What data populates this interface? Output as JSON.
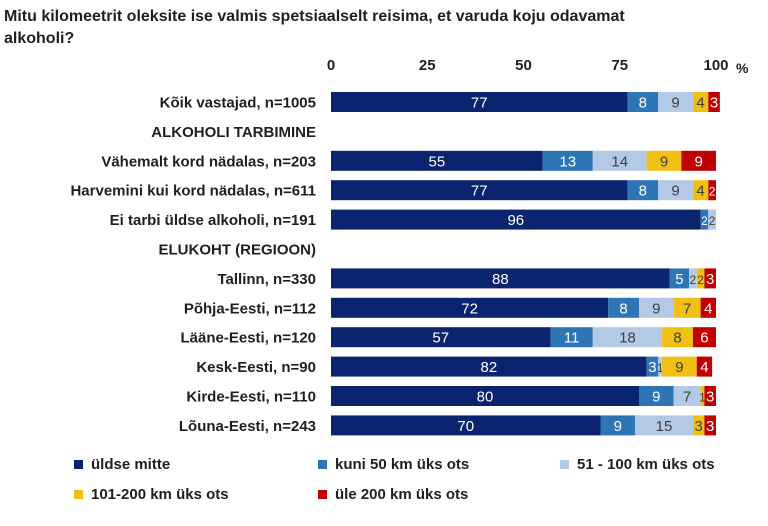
{
  "title": "Mitu kilomeetrit oleksite ise valmis spetsiaalselt reisima, et varuda koju odavamat alkoholi?",
  "chart_data": {
    "type": "bar",
    "orientation": "horizontal",
    "stacked": true,
    "title": "Mitu kilomeetrit oleksite ise valmis spetsiaalselt reisima, et varuda koju odavamat alkoholi?",
    "x_ticks": [
      "0",
      "25",
      "50",
      "75",
      "100"
    ],
    "x_unit": "%",
    "xlim": [
      0,
      100
    ],
    "grid": false,
    "legend_position": "bottom",
    "rows": [
      {
        "label": "Kõik vastajad, n=1005",
        "heading": false,
        "values": [
          77,
          8,
          9,
          4,
          3
        ],
        "labels": [
          "77",
          "8",
          "9",
          "4",
          "3"
        ]
      },
      {
        "label": "ALKOHOLI TARBIMINE",
        "heading": true
      },
      {
        "label": "Vähemalt kord nädalas, n=203",
        "heading": false,
        "values": [
          55,
          13,
          14,
          9,
          9
        ],
        "labels": [
          "55",
          "13",
          "14",
          "9",
          "9"
        ]
      },
      {
        "label": "Harvemini kui kord nädalas, n=611",
        "heading": false,
        "values": [
          77,
          8,
          9,
          4,
          2
        ],
        "labels": [
          "77",
          "8",
          "9",
          "4",
          "2"
        ]
      },
      {
        "label": "Ei tarbi üldse alkoholi, n=191",
        "heading": false,
        "values": [
          96,
          2,
          2,
          0,
          0
        ],
        "labels": [
          "96",
          "2",
          "2",
          "0",
          "0"
        ]
      },
      {
        "label": "ELUKOHT (REGIOON)",
        "heading": true
      },
      {
        "label": "Tallinn, n=330",
        "heading": false,
        "values": [
          88,
          5,
          2,
          2,
          3
        ],
        "labels": [
          "88",
          "5",
          "2",
          "2",
          "3"
        ]
      },
      {
        "label": "Põhja-Eesti, n=112",
        "heading": false,
        "values": [
          72,
          8,
          9,
          7,
          4
        ],
        "labels": [
          "72",
          "8",
          "9",
          "7",
          "4"
        ]
      },
      {
        "label": "Lääne-Eesti, n=120",
        "heading": false,
        "values": [
          57,
          11,
          18,
          8,
          6
        ],
        "labels": [
          "57",
          "11",
          "18",
          "8",
          "6"
        ]
      },
      {
        "label": "Kesk-Eesti, n=90",
        "heading": false,
        "values": [
          82,
          3,
          1,
          9,
          4
        ],
        "labels": [
          "82",
          "3",
          "1",
          "9",
          "4"
        ]
      },
      {
        "label": "Kirde-Eesti, n=110",
        "heading": false,
        "values": [
          80,
          9,
          7,
          1,
          3
        ],
        "labels": [
          "80",
          "9",
          "7",
          "1",
          "3"
        ]
      },
      {
        "label": "Lõuna-Eesti, n=243",
        "heading": false,
        "values": [
          70,
          9,
          15,
          3,
          3
        ],
        "labels": [
          "70",
          "9",
          "15",
          "3",
          "3"
        ]
      }
    ],
    "series": [
      {
        "name": "üldse mitte",
        "color": "#0b2470",
        "text_color": "#ffffff"
      },
      {
        "name": "kuni 50 km üks ots",
        "color": "#2e75b6",
        "text_color": "#ffffff"
      },
      {
        "name": "51 - 100 km üks ots",
        "color": "#b3c9e6",
        "text_color": "#404040"
      },
      {
        "name": "101-200 km üks ots",
        "color": "#f2bf14",
        "text_color": "#404040"
      },
      {
        "name": "üle 200 km üks ots",
        "color": "#c00000",
        "text_color": "#ffffff"
      }
    ]
  }
}
